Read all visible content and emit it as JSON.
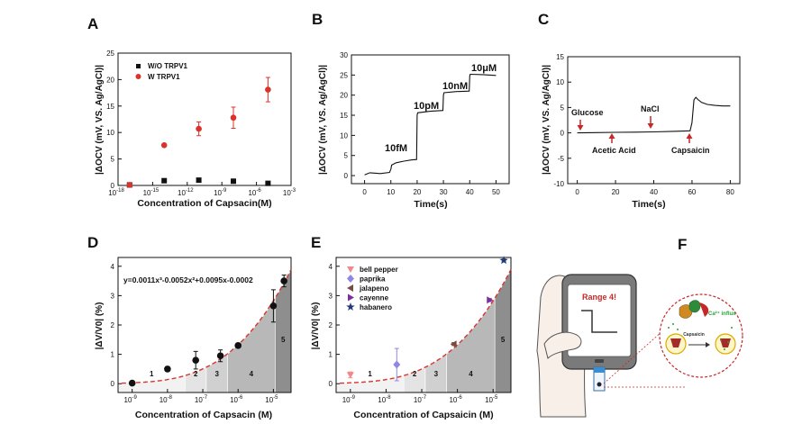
{
  "colors": {
    "red": "#d9342b",
    "black": "#111111",
    "curve": "#d9342b",
    "bell_pepper": "#f08a8a",
    "paprika": "#8f86e6",
    "jalapeno": "#7a4a3f",
    "cayenne": "#7b2e9e",
    "habanero": "#233a7a",
    "green_text": "#2e9e3a"
  },
  "panels": {
    "A": {
      "label": "A"
    },
    "B": {
      "label": "B"
    },
    "C": {
      "label": "C"
    },
    "D": {
      "label": "D"
    },
    "E": {
      "label": "E"
    },
    "F": {
      "label": "F"
    }
  },
  "chart_data": [
    {
      "id": "A",
      "type": "scatter",
      "xlabel": "Concentration of Capsacin(M)",
      "ylabel": "|ΔOCV (mV, VS. Ag/AgCl)|",
      "xscale": "log",
      "xlim_exp": [
        -18,
        -3
      ],
      "x_tick_labels": [
        "10",
        "10",
        "10",
        "10",
        "10",
        "10"
      ],
      "x_tick_exps": [
        "-18",
        "-15",
        "-12",
        "-9",
        "-6",
        "-3"
      ],
      "ylim": [
        0,
        25
      ],
      "y_ticks": [
        "0",
        "5",
        "10",
        "15",
        "20",
        "25"
      ],
      "legend": [
        "W/O TRPV1",
        "W TRPV1"
      ],
      "series": [
        {
          "name": "W/O TRPV1",
          "marker": "square",
          "color": "#111111",
          "x_exp": [
            -17,
            -14,
            -11,
            -8,
            -5
          ],
          "y": [
            0.1,
            0.9,
            1.0,
            0.8,
            0.4
          ],
          "err": [
            0,
            0,
            0,
            0,
            0
          ]
        },
        {
          "name": "W TRPV1",
          "marker": "circle",
          "color": "#d9342b",
          "x_exp": [
            -17,
            -14,
            -11,
            -8,
            -5
          ],
          "y": [
            0.1,
            7.6,
            10.7,
            12.8,
            18.1
          ],
          "err": [
            0,
            0,
            1.3,
            2.0,
            2.3
          ]
        }
      ]
    },
    {
      "id": "B",
      "type": "line",
      "xlabel": "Time(s)",
      "ylabel": "|ΔOCV (mV, VS. Ag/AgCl)|",
      "xlim": [
        -5,
        55
      ],
      "x_ticks": [
        "0",
        "10",
        "20",
        "30",
        "40",
        "50"
      ],
      "ylim": [
        -2,
        30
      ],
      "y_ticks": [
        "0",
        "5",
        "10",
        "15",
        "20",
        "25",
        "30"
      ],
      "annotations": [
        "10fM",
        "10pM",
        "10nM",
        "10μM"
      ],
      "x": [
        0,
        2,
        6,
        9.5,
        10,
        10.3,
        12,
        15,
        18,
        19.8,
        20,
        20.2,
        25,
        29.8,
        30,
        30.2,
        35,
        39.8,
        40,
        40.2,
        45,
        50
      ],
      "y": [
        0.2,
        0.7,
        0.5,
        0.8,
        1.6,
        2.6,
        3.2,
        3.6,
        3.9,
        4.0,
        15.0,
        15.6,
        16.0,
        16.2,
        20.0,
        20.6,
        20.9,
        21.0,
        24.8,
        25.2,
        25.1,
        24.9
      ]
    },
    {
      "id": "C",
      "type": "line",
      "xlabel": "Time(s)",
      "ylabel": "|ΔOCV (mV, VS. Ag/AgCl)|",
      "xlim": [
        -5,
        85
      ],
      "x_ticks": [
        "0",
        "20",
        "40",
        "60",
        "80"
      ],
      "ylim": [
        -10,
        15
      ],
      "y_ticks": [
        "-10",
        "-5",
        "0",
        "5",
        "10",
        "15"
      ],
      "annotations": [
        "Glucose",
        "Acetic Acid",
        "NaCl",
        "Capsaicin"
      ],
      "x": [
        0,
        10,
        20,
        30,
        40,
        50,
        59,
        60,
        61,
        62,
        63,
        65,
        68,
        72,
        76,
        80
      ],
      "y": [
        0,
        0.05,
        0.1,
        0.15,
        0.2,
        0.3,
        0.4,
        2.0,
        6.5,
        7.0,
        6.6,
        6.0,
        5.6,
        5.4,
        5.3,
        5.3
      ]
    },
    {
      "id": "D",
      "type": "scatter",
      "xlabel": "Concentration of Capsacin (M)",
      "ylabel": "|ΔV/V0| (%)",
      "xscale": "log",
      "xlim_exp": [
        -9.4,
        -4.5
      ],
      "x_tick_labels": [
        "10",
        "10",
        "10",
        "10",
        "10"
      ],
      "x_tick_exps": [
        "-9",
        "-8",
        "-7",
        "-6",
        "-5"
      ],
      "ylim": [
        -0.3,
        4.3
      ],
      "y_ticks": [
        "0",
        "1",
        "2",
        "3",
        "4"
      ],
      "equation": "y=0.0011x³-0.0052x²+0.0095x-0.0002",
      "ranges": [
        "1",
        "2",
        "3",
        "4",
        "5"
      ],
      "x_exp": [
        -9,
        -8,
        -7.2,
        -6.5,
        -6,
        -5,
        -4.7
      ],
      "y": [
        0.02,
        0.5,
        0.8,
        0.95,
        1.3,
        2.65,
        3.5
      ],
      "err": [
        0.05,
        0.08,
        0.3,
        0.2,
        0.08,
        0.55,
        0.2
      ]
    },
    {
      "id": "E",
      "type": "scatter",
      "xlabel": "Concentration of Capsaicin (M)",
      "ylabel": "|ΔV/V0| (%)",
      "xscale": "log",
      "xlim_exp": [
        -9.4,
        -4.5
      ],
      "x_tick_labels": [
        "10",
        "10",
        "10",
        "10",
        "10"
      ],
      "x_tick_exps": [
        "-9",
        "-8",
        "-7",
        "-6",
        "-5"
      ],
      "ylim": [
        -0.3,
        4.3
      ],
      "y_ticks": [
        "0",
        "1",
        "2",
        "3",
        "4"
      ],
      "ranges": [
        "1",
        "2",
        "3",
        "4",
        "5"
      ],
      "legend": [
        "bell pepper",
        "paprika",
        "jalapeno",
        "cayenne",
        "habanero"
      ],
      "points": [
        {
          "name": "bell pepper",
          "x_exp": -9.0,
          "y": 0.3,
          "err": 0.1,
          "marker": "tri-down"
        },
        {
          "name": "paprika",
          "x_exp": -7.7,
          "y": 0.65,
          "err": 0.55,
          "marker": "diamond"
        },
        {
          "name": "jalapeno",
          "x_exp": -6.1,
          "y": 1.35,
          "err": 0.05,
          "marker": "tri-left"
        },
        {
          "name": "cayenne",
          "x_exp": -5.1,
          "y": 2.85,
          "err": 0.05,
          "marker": "tri-right"
        },
        {
          "name": "habanero",
          "x_exp": -4.7,
          "y": 4.2,
          "err": 0.05,
          "marker": "star"
        }
      ]
    }
  ],
  "panel_f": {
    "screen_text": "Range 4!",
    "bubble_label": "Ca²⁺ influx",
    "bubble_sub": "Capsaicin"
  }
}
